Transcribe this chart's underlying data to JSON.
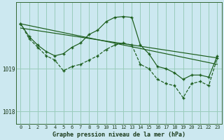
{
  "background_color": "#cce8f0",
  "plot_bg_color": "#cce8f0",
  "grid_color": "#99ccbb",
  "line_color": "#1a5c1a",
  "title": "Graphe pression niveau de la mer (hPa)",
  "yticks": [
    1018,
    1019
  ],
  "xlim": [
    -0.5,
    23.5
  ],
  "ylim": [
    1017.7,
    1020.55
  ],
  "trend1_x": [
    0,
    23
  ],
  "trend1_y": [
    1020.05,
    1019.1
  ],
  "trend2_x": [
    0,
    23
  ],
  "trend2_y": [
    1019.95,
    1019.25
  ],
  "hump_x": [
    0,
    1,
    2,
    3,
    4,
    5,
    6,
    7,
    8,
    9,
    10,
    11,
    12,
    13,
    14,
    15,
    16,
    17,
    18,
    19,
    20,
    21,
    22,
    23
  ],
  "hump_y": [
    1020.05,
    1019.75,
    1019.55,
    1019.4,
    1019.3,
    1019.35,
    1019.5,
    1019.6,
    1019.8,
    1019.9,
    1020.1,
    1020.2,
    1020.22,
    1020.2,
    1019.55,
    1019.35,
    1019.05,
    1019.0,
    1018.9,
    1018.75,
    1018.85,
    1018.85,
    1018.8,
    1019.3
  ],
  "jagged_x": [
    0,
    1,
    2,
    3,
    4,
    5,
    6,
    7,
    8,
    9,
    10,
    11,
    12,
    13,
    14,
    15,
    16,
    17,
    18,
    19,
    20,
    21,
    22,
    23
  ],
  "jagged_y": [
    1020.05,
    1019.7,
    1019.5,
    1019.3,
    1019.2,
    1018.95,
    1019.05,
    1019.1,
    1019.2,
    1019.3,
    1019.45,
    1019.55,
    1019.6,
    1019.55,
    1019.1,
    1019.0,
    1018.75,
    1018.65,
    1018.6,
    1018.32,
    1018.65,
    1018.7,
    1018.6,
    1019.25
  ],
  "xtick_labels": [
    "0",
    "1",
    "2",
    "3",
    "4",
    "5",
    "6",
    "7",
    "8",
    "9",
    "10",
    "11",
    "12",
    "13",
    "14",
    "15",
    "16",
    "17",
    "18",
    "19",
    "20",
    "21",
    "22",
    "23"
  ]
}
